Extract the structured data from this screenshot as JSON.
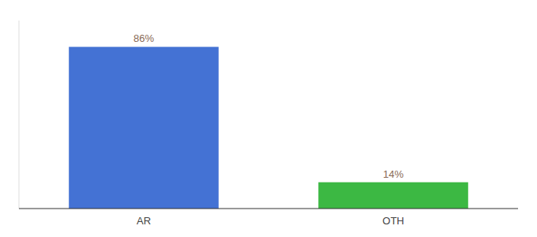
{
  "chart_data": {
    "type": "bar",
    "categories": [
      "AR",
      "OTH"
    ],
    "values": [
      86,
      14
    ],
    "value_labels": [
      "86%",
      "14%"
    ],
    "colors": [
      "#4472d4",
      "#3cb843"
    ],
    "ylim": [
      0,
      100
    ],
    "data_labels": true,
    "tick_labels": "x"
  }
}
